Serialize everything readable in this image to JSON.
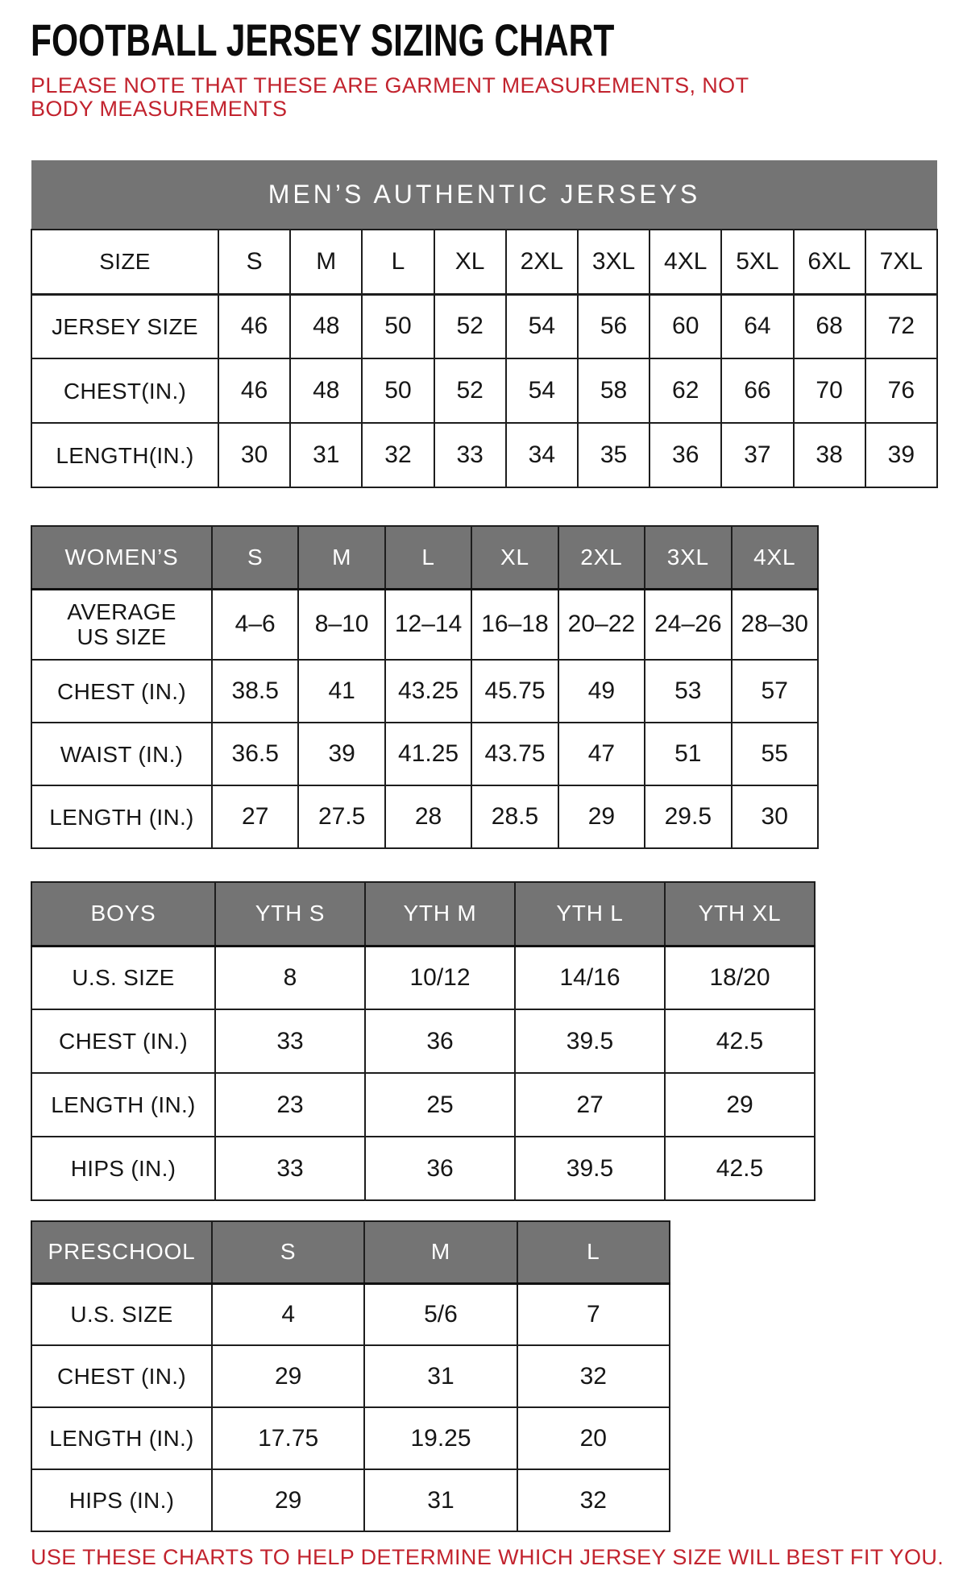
{
  "page": {
    "title": "FOOTBALL JERSEY SIZING CHART",
    "subtitle": "PLEASE NOTE THAT THESE ARE GARMENT MEASUREMENTS, NOT BODY MEASUREMENTS",
    "footer": "USE THESE CHARTS TO HELP DETERMINE WHICH JERSEY SIZE WILL BEST FIT YOU.",
    "colors": {
      "accent_red": "#c2232e",
      "header_gray": "#747474",
      "header_text": "#ffffff",
      "border_black": "#1d1d1d"
    }
  },
  "tables": [
    {
      "id": "mens",
      "banner": "MEN’S AUTHENTIC JERSEYS",
      "rows": [
        {
          "label": "SIZE",
          "values": [
            "S",
            "M",
            "L",
            "XL",
            "2XL",
            "3XL",
            "4XL",
            "5XL",
            "6XL",
            "7XL"
          ]
        },
        {
          "label": "JERSEY SIZE",
          "values": [
            "46",
            "48",
            "50",
            "52",
            "54",
            "56",
            "60",
            "64",
            "68",
            "72"
          ]
        },
        {
          "label": "CHEST(IN.)",
          "values": [
            "46",
            "48",
            "50",
            "52",
            "54",
            "58",
            "62",
            "66",
            "70",
            "76"
          ]
        },
        {
          "label": "LENGTH(IN.)",
          "values": [
            "30",
            "31",
            "32",
            "33",
            "34",
            "35",
            "36",
            "37",
            "38",
            "39"
          ]
        }
      ]
    },
    {
      "id": "womens",
      "header": {
        "label": "WOMEN’S",
        "values": [
          "S",
          "M",
          "L",
          "XL",
          "2XL",
          "3XL",
          "4XL"
        ]
      },
      "rows": [
        {
          "label": "AVERAGE\nUS SIZE",
          "values": [
            "4–6",
            "8–10",
            "12–14",
            "16–18",
            "20–22",
            "24–26",
            "28–30"
          ]
        },
        {
          "label": "CHEST (IN.)",
          "values": [
            "38.5",
            "41",
            "43.25",
            "45.75",
            "49",
            "53",
            "57"
          ]
        },
        {
          "label": "WAIST (IN.)",
          "values": [
            "36.5",
            "39",
            "41.25",
            "43.75",
            "47",
            "51",
            "55"
          ]
        },
        {
          "label": "LENGTH (IN.)",
          "values": [
            "27",
            "27.5",
            "28",
            "28.5",
            "29",
            "29.5",
            "30"
          ]
        }
      ]
    },
    {
      "id": "boys",
      "header": {
        "label": "BOYS",
        "values": [
          "YTH S",
          "YTH M",
          "YTH L",
          "YTH XL"
        ]
      },
      "rows": [
        {
          "label": "U.S. SIZE",
          "values": [
            "8",
            "10/12",
            "14/16",
            "18/20"
          ]
        },
        {
          "label": "CHEST (IN.)",
          "values": [
            "33",
            "36",
            "39.5",
            "42.5"
          ]
        },
        {
          "label": "LENGTH (IN.)",
          "values": [
            "23",
            "25",
            "27",
            "29"
          ]
        },
        {
          "label": "HIPS (IN.)",
          "values": [
            "33",
            "36",
            "39.5",
            "42.5"
          ]
        }
      ]
    },
    {
      "id": "preschool",
      "header": {
        "label": "PRESCHOOL",
        "values": [
          "S",
          "M",
          "L"
        ]
      },
      "rows": [
        {
          "label": "U.S. SIZE",
          "values": [
            "4",
            "5/6",
            "7"
          ]
        },
        {
          "label": "CHEST (IN.)",
          "values": [
            "29",
            "31",
            "32"
          ]
        },
        {
          "label": "LENGTH (IN.)",
          "values": [
            "17.75",
            "19.25",
            "20"
          ]
        },
        {
          "label": "HIPS (IN.)",
          "values": [
            "29",
            "31",
            "32"
          ]
        }
      ]
    }
  ]
}
